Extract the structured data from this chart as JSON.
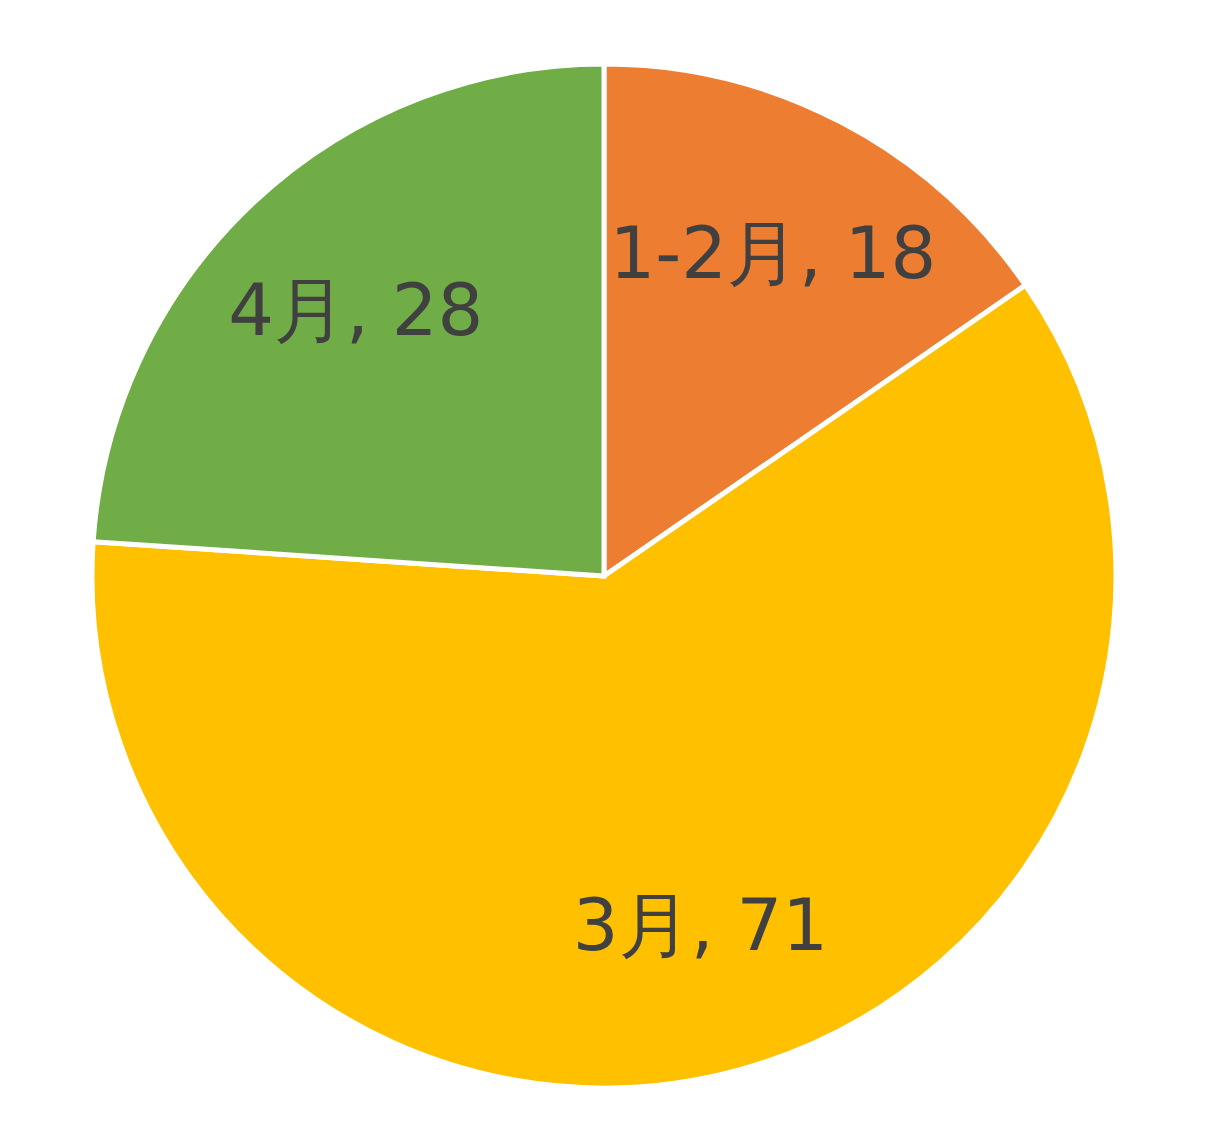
{
  "chart_data": {
    "type": "pie",
    "categories": [
      "1-2月",
      "3月",
      "4月"
    ],
    "values": [
      18,
      71,
      28
    ],
    "value_labels": [
      ", 18",
      ", 71",
      ", 28"
    ],
    "colors": [
      "#ed7d31",
      "#ffc000",
      "#70ad47"
    ],
    "legend": false
  }
}
